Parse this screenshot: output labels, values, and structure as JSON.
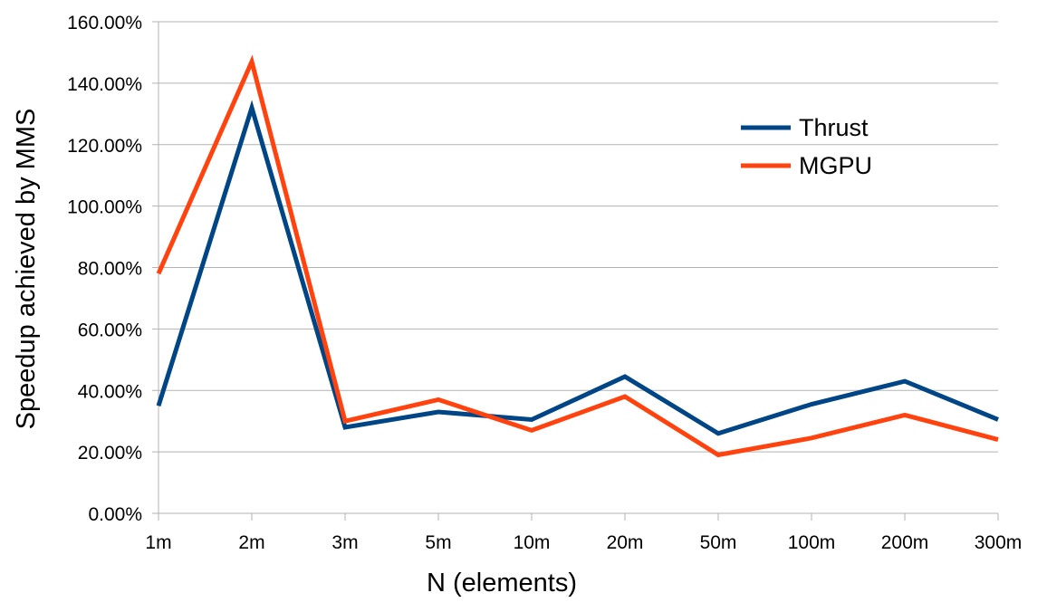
{
  "chart_data": {
    "type": "line",
    "title": "",
    "xlabel": "N (elements)",
    "ylabel": "Speedup achieved by MMS",
    "categories": [
      "1m",
      "2m",
      "3m",
      "5m",
      "10m",
      "20m",
      "50m",
      "100m",
      "200m",
      "300m"
    ],
    "ylim": [
      0,
      160
    ],
    "yticks": [
      0,
      20,
      40,
      60,
      80,
      100,
      120,
      140,
      160
    ],
    "ytick_labels": [
      "0.00%",
      "20.00%",
      "40.00%",
      "60.00%",
      "80.00%",
      "100.00%",
      "120.00%",
      "140.00%",
      "160.00%"
    ],
    "y_unit": "percent",
    "grid": "horizontal",
    "legend_position": "top-right",
    "series": [
      {
        "name": "Thrust",
        "color": "#004586",
        "values": [
          35,
          132,
          28,
          33,
          30.5,
          44.5,
          26,
          35.5,
          43,
          30.5
        ]
      },
      {
        "name": "MGPU",
        "color": "#ff420e",
        "values": [
          78,
          147,
          30,
          37,
          27,
          38,
          19,
          24.5,
          32,
          24
        ]
      }
    ]
  }
}
